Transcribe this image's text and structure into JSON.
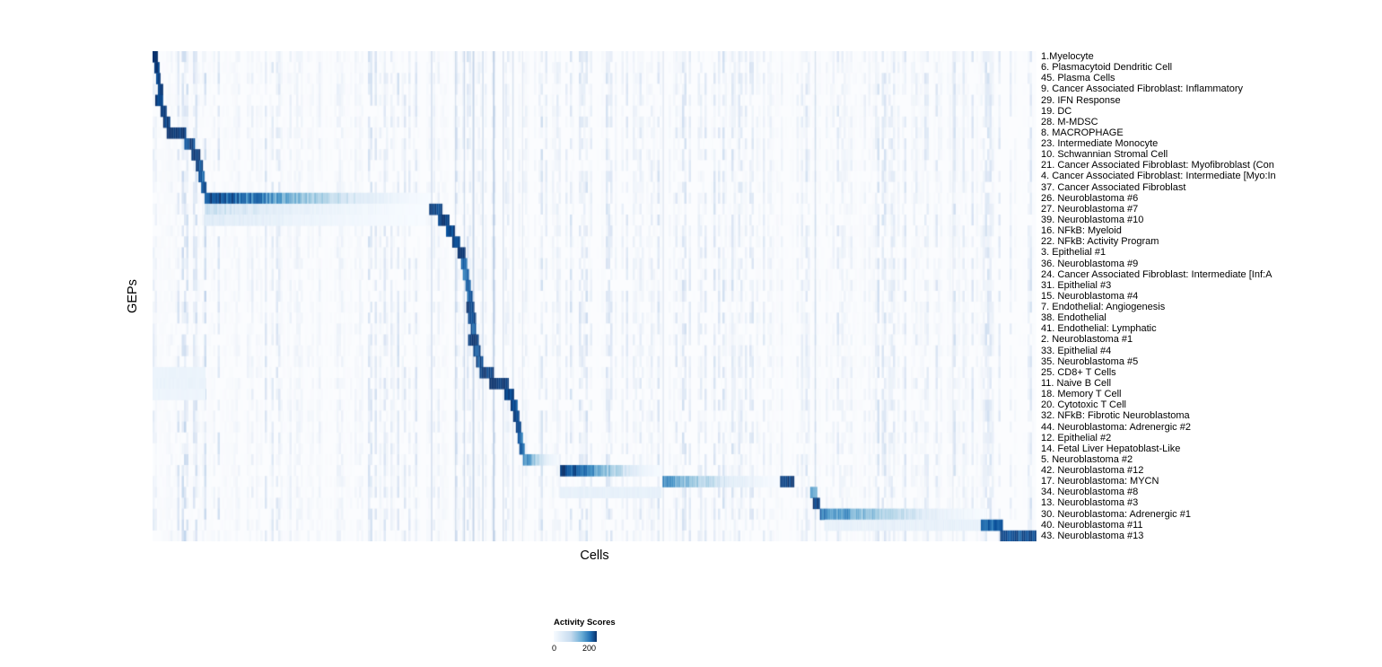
{
  "chart_data": {
    "type": "heatmap",
    "title": "",
    "xlabel": "Cells",
    "ylabel": "GEPs",
    "colormap": "Blues",
    "grid": false,
    "legend_position": "bottom",
    "colorbar": {
      "title": "Activity Scores",
      "min": 0,
      "max": 200,
      "tick_labels": [
        "0",
        "200"
      ],
      "gradient": [
        "#f7fbff",
        "#c6dbef",
        "#6baed6",
        "#2171b5",
        "#08306b"
      ]
    },
    "n_rows": 45,
    "rows": [
      "1.Myelocyte",
      "6. Plasmacytoid Dendritic Cell",
      "45. Plasma Cells",
      "9. Cancer Associated Fibroblast: Inflammatory",
      "29. IFN Response",
      "19. DC",
      "28. M-MDSC",
      "8. MACROPHAGE",
      "23. Intermediate Monocyte",
      "10. Schwannian Stromal Cell",
      "21. Cancer Associated Fibroblast: Myofibroblast (Con",
      "4. Cancer Associated Fibroblast: Intermediate [Myo:In",
      "37. Cancer Associated Fibroblast",
      "26. Neuroblastoma #6",
      "27. Neuroblastoma #7",
      "39. Neuroblastoma #10",
      "16. NFkB: Myeloid",
      "22. NFkB: Activity Program",
      "3. Epithelial #1",
      "36. Neuroblastoma #9",
      "24. Cancer Associated Fibroblast: Intermediate [Inf:A",
      "31. Epithelial #3",
      "15. Neuroblastoma #4",
      "7. Endothelial: Angiogenesis",
      "38. Endothelial",
      "41. Endothelial: Lymphatic",
      "2. Neuroblastoma #1",
      "33. Epithelial #4",
      "35. Neuroblastoma #5",
      "25. CD8+ T Cells",
      "11. Naive B Cell",
      "18. Memory T Cell",
      "20. Cytotoxic T Cell",
      "32. NFkB: Fibrotic Neuroblastoma",
      "44. Neuroblastoma: Adrenergic #2",
      "12. Epithelial #2",
      "14. Fetal Liver Hepatoblast-Like",
      "5. Neuroblastoma #2",
      "42. Neuroblastoma #12",
      "17. Neuroblastoma: MYCN",
      "34. Neuroblastoma #8",
      "13. Neuroblastoma #3",
      "30. Neuroblastoma: Adrenergic #1",
      "40. Neuroblastoma #11",
      "43. Neuroblastoma #13"
    ],
    "blocks": [
      {
        "row": 0,
        "x0": 0.0,
        "x1": 0.006,
        "value": 190
      },
      {
        "row": 1,
        "x0": 0.002,
        "x1": 0.008,
        "value": 180
      },
      {
        "row": 2,
        "x0": 0.004,
        "x1": 0.009,
        "value": 170
      },
      {
        "row": 3,
        "x0": 0.006,
        "x1": 0.012,
        "value": 180
      },
      {
        "row": 4,
        "x0": 0.003,
        "x1": 0.012,
        "value": 190
      },
      {
        "row": 5,
        "x0": 0.009,
        "x1": 0.016,
        "value": 180
      },
      {
        "row": 6,
        "x0": 0.012,
        "x1": 0.02,
        "value": 190
      },
      {
        "row": 7,
        "x0": 0.016,
        "x1": 0.038,
        "value": 200
      },
      {
        "row": 8,
        "x0": 0.036,
        "x1": 0.048,
        "value": 180
      },
      {
        "row": 9,
        "x0": 0.044,
        "x1": 0.054,
        "value": 190
      },
      {
        "row": 10,
        "x0": 0.049,
        "x1": 0.057,
        "value": 170
      },
      {
        "row": 11,
        "x0": 0.052,
        "x1": 0.059,
        "value": 160
      },
      {
        "row": 12,
        "x0": 0.055,
        "x1": 0.061,
        "value": 160
      },
      {
        "row": 13,
        "x0": 0.059,
        "x1": 0.315,
        "value": 185,
        "fade": "right"
      },
      {
        "row": 14,
        "x0": 0.059,
        "x1": 0.31,
        "value": 55,
        "fade": "right"
      },
      {
        "row": 14,
        "x0": 0.313,
        "x1": 0.328,
        "value": 190
      },
      {
        "row": 15,
        "x0": 0.059,
        "x1": 0.31,
        "value": 40,
        "fade": "right"
      },
      {
        "row": 15,
        "x0": 0.323,
        "x1": 0.336,
        "value": 180
      },
      {
        "row": 16,
        "x0": 0.332,
        "x1": 0.342,
        "value": 180
      },
      {
        "row": 17,
        "x0": 0.339,
        "x1": 0.348,
        "value": 180
      },
      {
        "row": 18,
        "x0": 0.345,
        "x1": 0.354,
        "value": 190
      },
      {
        "row": 19,
        "x0": 0.349,
        "x1": 0.356,
        "value": 160
      },
      {
        "row": 20,
        "x0": 0.351,
        "x1": 0.358,
        "value": 150
      },
      {
        "row": 21,
        "x0": 0.354,
        "x1": 0.36,
        "value": 160
      },
      {
        "row": 22,
        "x0": 0.356,
        "x1": 0.362,
        "value": 160
      },
      {
        "row": 23,
        "x0": 0.355,
        "x1": 0.364,
        "value": 190
      },
      {
        "row": 24,
        "x0": 0.357,
        "x1": 0.366,
        "value": 170
      },
      {
        "row": 25,
        "x0": 0.36,
        "x1": 0.366,
        "value": 160
      },
      {
        "row": 26,
        "x0": 0.357,
        "x1": 0.369,
        "value": 200
      },
      {
        "row": 27,
        "x0": 0.363,
        "x1": 0.371,
        "value": 170
      },
      {
        "row": 28,
        "x0": 0.366,
        "x1": 0.374,
        "value": 170
      },
      {
        "row": 29,
        "x0": 0.0,
        "x1": 0.06,
        "value": 18
      },
      {
        "row": 29,
        "x0": 0.37,
        "x1": 0.386,
        "value": 190
      },
      {
        "row": 30,
        "x0": 0.0,
        "x1": 0.06,
        "value": 20
      },
      {
        "row": 30,
        "x0": 0.381,
        "x1": 0.403,
        "value": 200
      },
      {
        "row": 31,
        "x0": 0.0,
        "x1": 0.06,
        "value": 15
      },
      {
        "row": 31,
        "x0": 0.398,
        "x1": 0.409,
        "value": 180
      },
      {
        "row": 32,
        "x0": 0.405,
        "x1": 0.413,
        "value": 170
      },
      {
        "row": 33,
        "x0": 0.408,
        "x1": 0.415,
        "value": 170
      },
      {
        "row": 34,
        "x0": 0.411,
        "x1": 0.417,
        "value": 160
      },
      {
        "row": 35,
        "x0": 0.413,
        "x1": 0.419,
        "value": 150
      },
      {
        "row": 36,
        "x0": 0.415,
        "x1": 0.421,
        "value": 150
      },
      {
        "row": 37,
        "x0": 0.419,
        "x1": 0.46,
        "value": 130,
        "fade": "right"
      },
      {
        "row": 38,
        "x0": 0.461,
        "x1": 0.576,
        "value": 190,
        "fade": "right"
      },
      {
        "row": 39,
        "x0": 0.577,
        "x1": 0.71,
        "value": 120,
        "fade": "right"
      },
      {
        "row": 39,
        "x0": 0.71,
        "x1": 0.726,
        "value": 180
      },
      {
        "row": 40,
        "x0": 0.461,
        "x1": 0.576,
        "value": 25
      },
      {
        "row": 40,
        "x0": 0.744,
        "x1": 0.752,
        "value": 100
      },
      {
        "row": 41,
        "x0": 0.747,
        "x1": 0.755,
        "value": 190
      },
      {
        "row": 42,
        "x0": 0.755,
        "x1": 0.944,
        "value": 140,
        "fade": "right"
      },
      {
        "row": 43,
        "x0": 0.76,
        "x1": 0.937,
        "value": 25
      },
      {
        "row": 43,
        "x0": 0.937,
        "x1": 0.962,
        "value": 150
      },
      {
        "row": 44,
        "x0": 0.959,
        "x1": 1.0,
        "value": 170
      }
    ],
    "column_streaks": [
      {
        "x": 0.315,
        "w": 0.0015,
        "a": 0.22
      },
      {
        "x": 0.342,
        "w": 0.0015,
        "a": 0.18
      },
      {
        "x": 0.352,
        "w": 0.0015,
        "a": 0.22
      },
      {
        "x": 0.362,
        "w": 0.002,
        "a": 0.28
      },
      {
        "x": 0.373,
        "w": 0.0015,
        "a": 0.22
      },
      {
        "x": 0.385,
        "w": 0.002,
        "a": 0.28
      },
      {
        "x": 0.396,
        "w": 0.0015,
        "a": 0.18
      },
      {
        "x": 0.407,
        "w": 0.0015,
        "a": 0.18
      },
      {
        "x": 0.418,
        "w": 0.001,
        "a": 0.14
      },
      {
        "x": 0.577,
        "w": 0.0015,
        "a": 0.14
      },
      {
        "x": 0.749,
        "w": 0.0015,
        "a": 0.18
      },
      {
        "x": 0.905,
        "w": 0.001,
        "a": 0.1
      }
    ]
  }
}
